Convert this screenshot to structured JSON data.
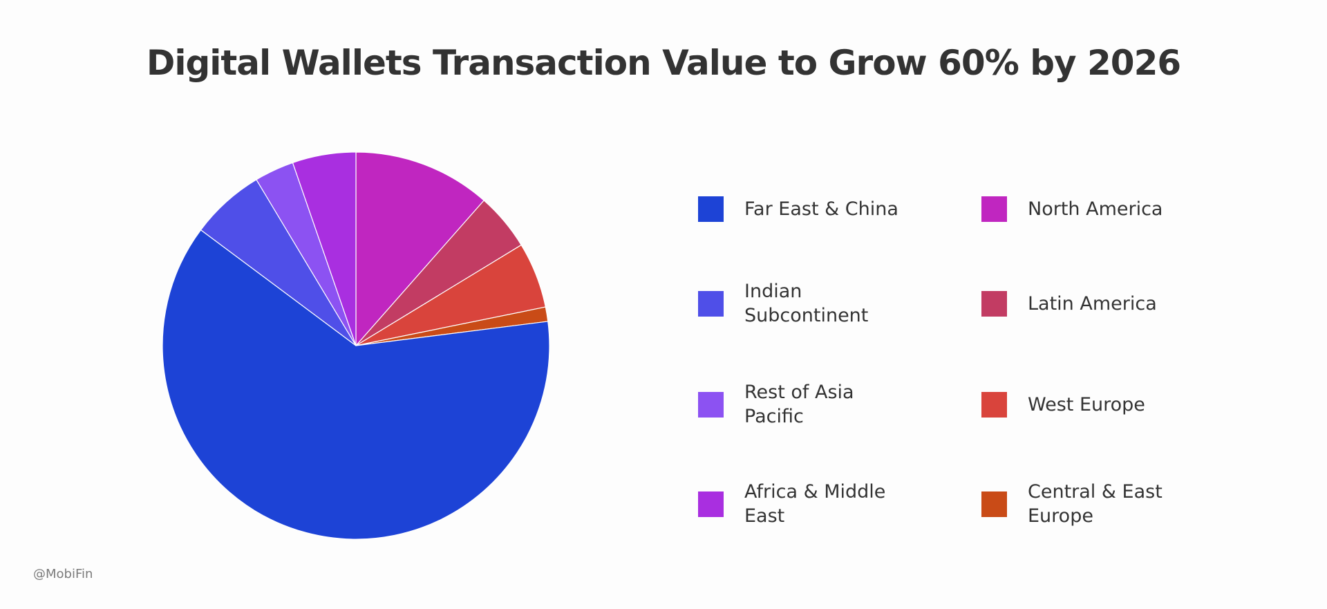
{
  "chart_data": {
    "type": "pie",
    "title": "Digital Wallets Transaction Value to Grow 60% by 2026",
    "start_angle_deg": 0,
    "slices": [
      {
        "label": "North America",
        "value": 11.5,
        "color": "#c026c0"
      },
      {
        "label": "Latin America",
        "value": 4.8,
        "color": "#c23c63"
      },
      {
        "label": "West Europe",
        "value": 5.5,
        "color": "#d9443c"
      },
      {
        "label": "Central & East Europe",
        "value": 1.2,
        "color": "#c94b17"
      },
      {
        "label": "Far East & China",
        "value": 62.2,
        "color": "#1d43d6"
      },
      {
        "label": "Indian Subcontinent",
        "value": 6.2,
        "color": "#4f4fe8"
      },
      {
        "label": "Rest of Asia Pacific",
        "value": 3.3,
        "color": "#8c52f2"
      },
      {
        "label": "Africa & Middle East",
        "value": 5.3,
        "color": "#a92fe0"
      }
    ],
    "legend": {
      "placement": "right",
      "columns": [
        [
          {
            "label": "Far East & China",
            "color": "#1d43d6"
          },
          {
            "label": "Indian Subcontinent",
            "color": "#4f4fe8"
          },
          {
            "label": "Rest of Asia Pacific",
            "color": "#8c52f2"
          },
          {
            "label": "Africa & Middle East",
            "color": "#a92fe0"
          }
        ],
        [
          {
            "label": "North America",
            "color": "#c026c0"
          },
          {
            "label": "Latin America",
            "color": "#c23c63"
          },
          {
            "label": "West Europe",
            "color": "#d9443c"
          },
          {
            "label": "Central & East Europe",
            "color": "#c94b17"
          }
        ]
      ]
    }
  },
  "watermark": "@MobiFin"
}
